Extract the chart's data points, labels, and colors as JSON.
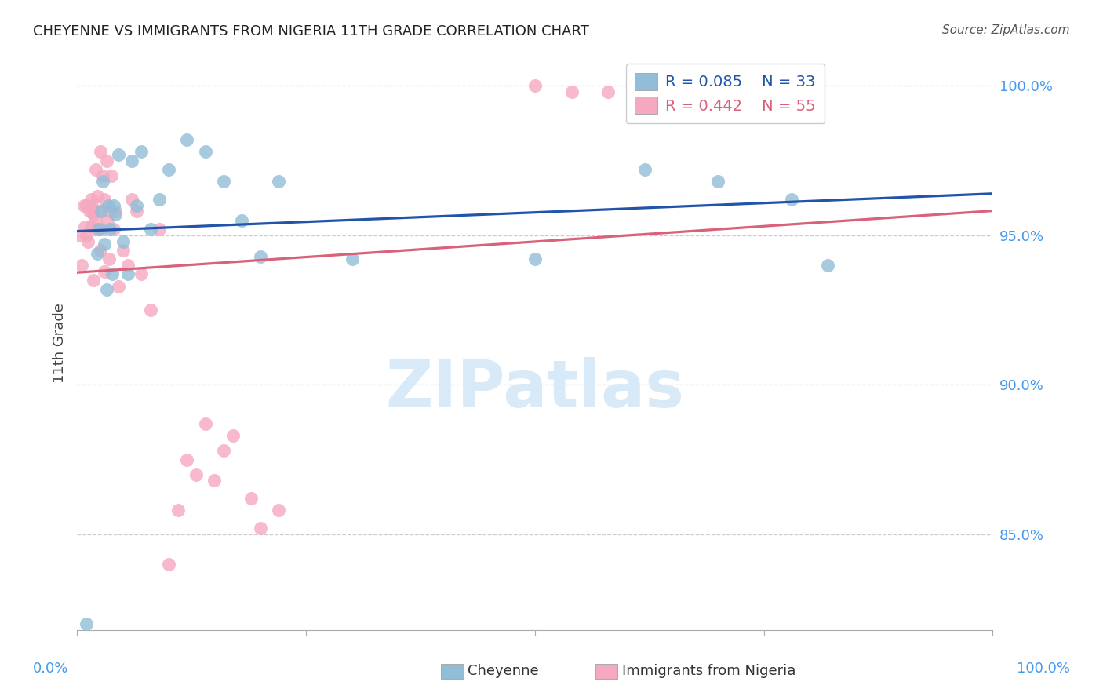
{
  "title": "CHEYENNE VS IMMIGRANTS FROM NIGERIA 11TH GRADE CORRELATION CHART",
  "source": "Source: ZipAtlas.com",
  "ylabel": "11th Grade",
  "y_tick_labels": [
    "85.0%",
    "90.0%",
    "95.0%",
    "100.0%"
  ],
  "y_tick_values": [
    0.85,
    0.9,
    0.95,
    1.0
  ],
  "x_range": [
    0.0,
    1.0
  ],
  "y_range": [
    0.818,
    1.01
  ],
  "legend_blue_R": "R = 0.085",
  "legend_blue_N": "N = 33",
  "legend_pink_R": "R = 0.442",
  "legend_pink_N": "N = 55",
  "blue_color": "#91BDD8",
  "pink_color": "#F5A8BE",
  "blue_line_color": "#2255AA",
  "pink_line_color": "#D9627A",
  "cheyenne_x": [
    0.01,
    0.022,
    0.024,
    0.026,
    0.028,
    0.03,
    0.032,
    0.034,
    0.036,
    0.038,
    0.04,
    0.042,
    0.045,
    0.05,
    0.055,
    0.06,
    0.065,
    0.07,
    0.08,
    0.09,
    0.1,
    0.12,
    0.14,
    0.16,
    0.18,
    0.2,
    0.22,
    0.3,
    0.5,
    0.62,
    0.7,
    0.78,
    0.82
  ],
  "cheyenne_y": [
    0.82,
    0.944,
    0.952,
    0.958,
    0.968,
    0.947,
    0.932,
    0.96,
    0.952,
    0.937,
    0.96,
    0.957,
    0.977,
    0.948,
    0.937,
    0.975,
    0.96,
    0.978,
    0.952,
    0.962,
    0.972,
    0.982,
    0.978,
    0.968,
    0.955,
    0.943,
    0.968,
    0.942,
    0.942,
    0.972,
    0.968,
    0.962,
    0.94
  ],
  "nigeria_x": [
    0.003,
    0.005,
    0.007,
    0.008,
    0.01,
    0.01,
    0.012,
    0.013,
    0.015,
    0.015,
    0.016,
    0.017,
    0.018,
    0.018,
    0.02,
    0.02,
    0.022,
    0.022,
    0.023,
    0.025,
    0.025,
    0.027,
    0.028,
    0.03,
    0.03,
    0.032,
    0.033,
    0.035,
    0.035,
    0.037,
    0.04,
    0.042,
    0.045,
    0.05,
    0.055,
    0.06,
    0.065,
    0.07,
    0.08,
    0.09,
    0.1,
    0.11,
    0.12,
    0.13,
    0.14,
    0.15,
    0.16,
    0.17,
    0.19,
    0.2,
    0.22,
    0.5,
    0.54,
    0.58,
    0.65
  ],
  "nigeria_y": [
    0.95,
    0.94,
    0.96,
    0.953,
    0.95,
    0.96,
    0.948,
    0.958,
    0.962,
    0.953,
    0.96,
    0.958,
    0.935,
    0.957,
    0.955,
    0.972,
    0.952,
    0.963,
    0.958,
    0.945,
    0.978,
    0.952,
    0.97,
    0.938,
    0.962,
    0.975,
    0.955,
    0.942,
    0.958,
    0.97,
    0.952,
    0.958,
    0.933,
    0.945,
    0.94,
    0.962,
    0.958,
    0.937,
    0.925,
    0.952,
    0.84,
    0.858,
    0.875,
    0.87,
    0.887,
    0.868,
    0.878,
    0.883,
    0.862,
    0.852,
    0.858,
    1.0,
    0.998,
    0.998,
    0.996
  ],
  "watermark_text": "ZIPatlas",
  "watermark_color": "#D8EAF8",
  "background_color": "#FFFFFF",
  "grid_color": "#CCCCCC",
  "legend_label_cheyenne": "Cheyenne",
  "legend_label_nigeria": "Immigrants from Nigeria"
}
